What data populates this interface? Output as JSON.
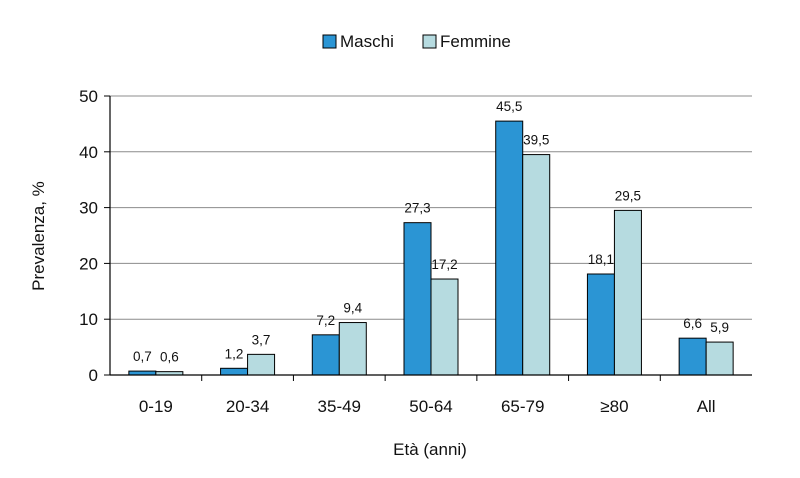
{
  "chart_data": {
    "type": "bar",
    "title": "",
    "xlabel": "Età (anni)",
    "ylabel": "Prevalenza, %",
    "ylim": [
      0,
      50
    ],
    "yticks": [
      0,
      10,
      20,
      30,
      40,
      50
    ],
    "grid": "horizontal",
    "legend_position": "top-center",
    "categories": [
      "0-19",
      "20-34",
      "35-49",
      "50-64",
      "65-79",
      "≥80",
      "All"
    ],
    "series": [
      {
        "name": "Maschi",
        "color": "#2b95d4",
        "values": [
          0.7,
          1.2,
          7.2,
          27.3,
          45.5,
          18.1,
          6.6
        ],
        "labels": [
          "0,7",
          "1,2",
          "7,2",
          "27,3",
          "45,5",
          "18,1",
          "6,6"
        ]
      },
      {
        "name": "Femmine",
        "color": "#b6dbe0",
        "values": [
          0.6,
          3.7,
          9.4,
          17.2,
          39.5,
          29.5,
          5.9
        ],
        "labels": [
          "0,6",
          "3,7",
          "9,4",
          "17,2",
          "39,5",
          "29,5",
          "5,9"
        ]
      }
    ]
  }
}
